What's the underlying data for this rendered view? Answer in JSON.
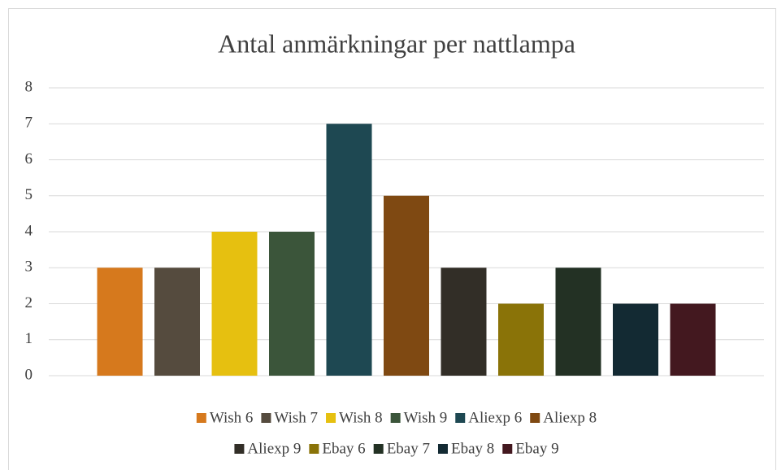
{
  "chart_data": {
    "type": "bar",
    "title": "Antal anmärkningar per nattlampa",
    "categories": [
      null
    ],
    "series": [
      {
        "name": "Wish 6",
        "color": "#d6791d",
        "values": [
          3
        ]
      },
      {
        "name": "Wish 7",
        "color": "#554b3e",
        "values": [
          3
        ]
      },
      {
        "name": "Wish 8",
        "color": "#e6c010",
        "values": [
          4
        ]
      },
      {
        "name": "Wish 9",
        "color": "#3b553a",
        "values": [
          4
        ]
      },
      {
        "name": "Aliexp 6",
        "color": "#1e4852",
        "values": [
          7
        ]
      },
      {
        "name": "Aliexp 8",
        "color": "#7f4912",
        "values": [
          5
        ]
      },
      {
        "name": "Aliexp 9",
        "color": "#322e27",
        "values": [
          3
        ]
      },
      {
        "name": "Ebay 6",
        "color": "#8a7308",
        "values": [
          2
        ]
      },
      {
        "name": "Ebay 7",
        "color": "#233124",
        "values": [
          3
        ]
      },
      {
        "name": "Ebay 8",
        "color": "#132a33",
        "values": [
          2
        ]
      },
      {
        "name": "Ebay 9",
        "color": "#43181f",
        "values": [
          2
        ]
      }
    ],
    "ylim": [
      0,
      8
    ],
    "yticks": [
      0,
      1,
      2,
      3,
      4,
      5,
      6,
      7,
      8
    ],
    "grid": true,
    "legend": "bottom"
  }
}
